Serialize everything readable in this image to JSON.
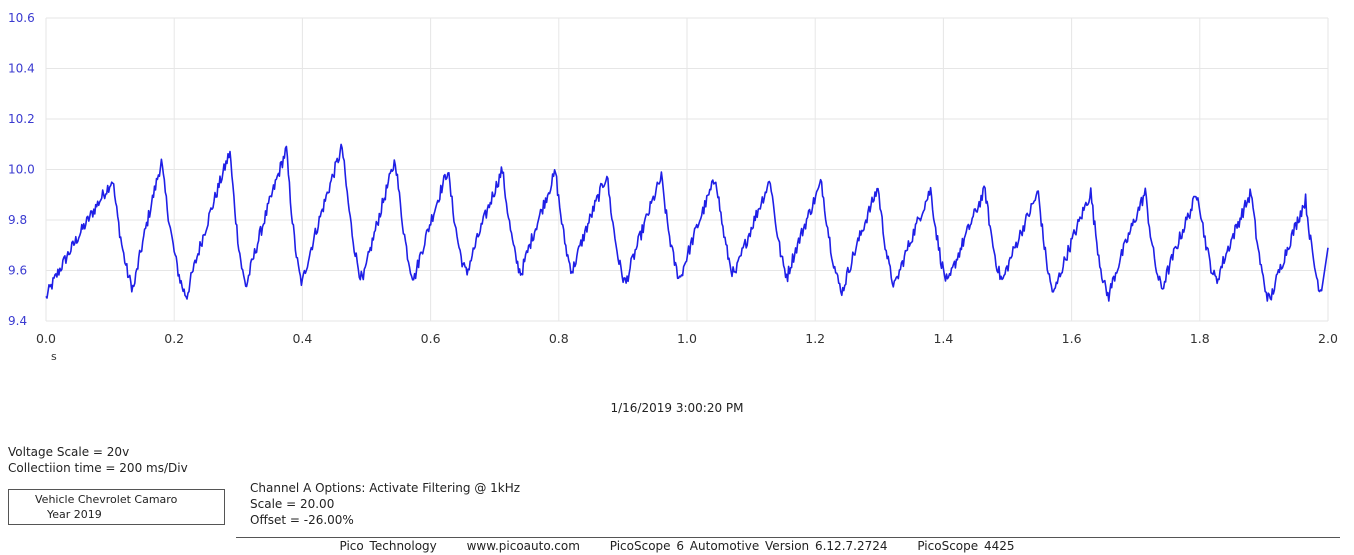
{
  "chart_data": {
    "type": "line",
    "x_unit": "s",
    "xlim": [
      0.0,
      2.0
    ],
    "ylim": [
      9.4,
      10.6
    ],
    "x_ticks": [
      "0.0",
      "0.2",
      "0.4",
      "0.6",
      "0.8",
      "1.0",
      "1.2",
      "1.4",
      "1.6",
      "1.8",
      "2.0"
    ],
    "y_ticks": [
      "9.4",
      "9.6",
      "9.8",
      "10.0",
      "10.2",
      "10.4",
      "10.6"
    ],
    "grid": true,
    "line_color": "#1f1fe6",
    "series": [
      {
        "peaks": [
          {
            "x": 0.104,
            "y": 9.96
          },
          {
            "x": 0.18,
            "y": 10.03
          },
          {
            "x": 0.287,
            "y": 10.07
          },
          {
            "x": 0.375,
            "y": 10.08
          },
          {
            "x": 0.462,
            "y": 10.09
          },
          {
            "x": 0.545,
            "y": 10.04
          },
          {
            "x": 0.627,
            "y": 10.0
          },
          {
            "x": 0.712,
            "y": 10.0
          },
          {
            "x": 0.795,
            "y": 9.99
          },
          {
            "x": 0.875,
            "y": 9.98
          },
          {
            "x": 0.96,
            "y": 9.97
          },
          {
            "x": 1.045,
            "y": 9.97
          },
          {
            "x": 1.13,
            "y": 9.96
          },
          {
            "x": 1.21,
            "y": 9.95
          },
          {
            "x": 1.298,
            "y": 9.93
          },
          {
            "x": 1.38,
            "y": 9.92
          },
          {
            "x": 1.465,
            "y": 9.92
          },
          {
            "x": 1.548,
            "y": 9.91
          },
          {
            "x": 1.63,
            "y": 9.91
          },
          {
            "x": 1.715,
            "y": 9.91
          },
          {
            "x": 1.797,
            "y": 9.91
          },
          {
            "x": 1.88,
            "y": 9.91
          },
          {
            "x": 1.965,
            "y": 9.88
          }
        ],
        "troughs": [
          {
            "x": 0.0,
            "y": 9.49
          },
          {
            "x": 0.137,
            "y": 9.53
          },
          {
            "x": 0.22,
            "y": 9.5
          },
          {
            "x": 0.313,
            "y": 9.54
          },
          {
            "x": 0.4,
            "y": 9.55
          },
          {
            "x": 0.495,
            "y": 9.56
          },
          {
            "x": 0.575,
            "y": 9.57
          },
          {
            "x": 0.657,
            "y": 9.59
          },
          {
            "x": 0.742,
            "y": 9.59
          },
          {
            "x": 0.822,
            "y": 9.6
          },
          {
            "x": 0.905,
            "y": 9.55
          },
          {
            "x": 0.99,
            "y": 9.57
          },
          {
            "x": 1.075,
            "y": 9.58
          },
          {
            "x": 1.157,
            "y": 9.58
          },
          {
            "x": 1.243,
            "y": 9.52
          },
          {
            "x": 1.325,
            "y": 9.54
          },
          {
            "x": 1.408,
            "y": 9.55
          },
          {
            "x": 1.493,
            "y": 9.56
          },
          {
            "x": 1.573,
            "y": 9.51
          },
          {
            "x": 1.658,
            "y": 9.5
          },
          {
            "x": 1.742,
            "y": 9.53
          },
          {
            "x": 1.827,
            "y": 9.56
          },
          {
            "x": 1.91,
            "y": 9.48
          },
          {
            "x": 1.99,
            "y": 9.52
          }
        ]
      }
    ]
  },
  "timestamp": "1/16/2019 3:00:20 PM",
  "settings": {
    "voltage_scale": "Voltage Scale = 20v",
    "collection_time": "Collectiion time = 200 ms/Div"
  },
  "vehicle": {
    "line1": "Vehicle Chevrolet Camaro",
    "line2": "Year 2019"
  },
  "channel": {
    "options": "Channel A Options: Activate Filtering @ 1kHz",
    "scale": "Scale = 20.00",
    "offset": "Offset = -26.00%"
  },
  "footer": {
    "company": "Pico Technology",
    "website": "www.picoauto.com",
    "version": "PicoScope 6 Automotive Version 6.12.7.2724",
    "device": "PicoScope 4425"
  }
}
